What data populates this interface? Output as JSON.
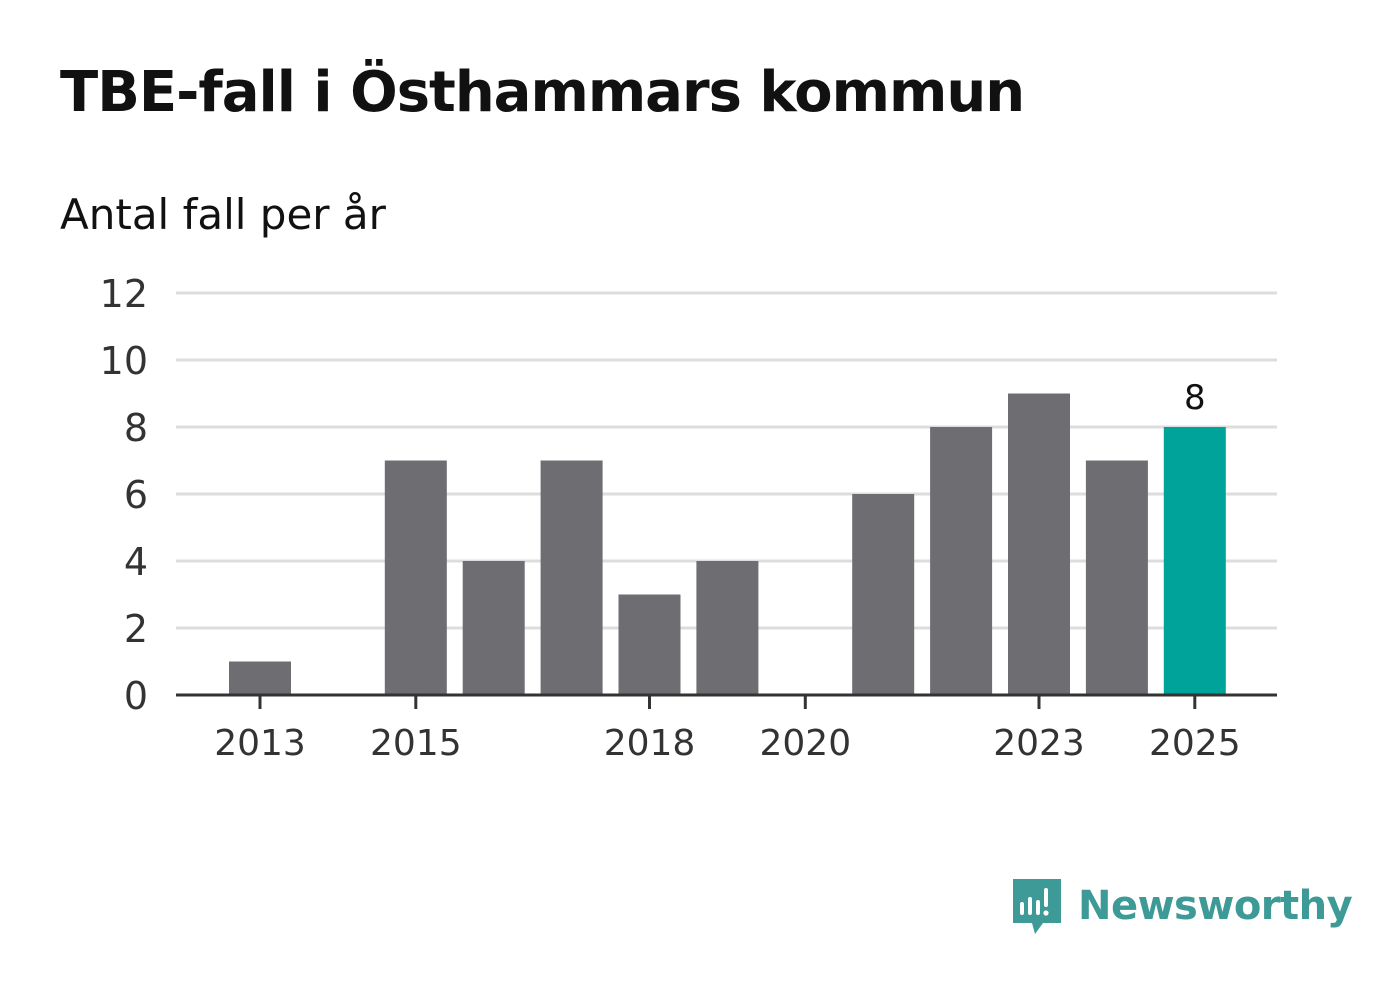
{
  "header": {
    "title": "TBE-fall i Östhammars kommun",
    "subtitle": "Antal fall per år"
  },
  "brand": {
    "name": "Newsworthy",
    "icon": "newsworthy-logo-icon",
    "color": "#3e9a96"
  },
  "colors": {
    "bar": "#6e6d72",
    "highlight": "#00a39a",
    "grid": "#dddddd",
    "axis": "#333333",
    "text": "#333333"
  },
  "chart_data": {
    "type": "bar",
    "categories": [
      "2013",
      "2014",
      "2015",
      "2016",
      "2017",
      "2018",
      "2019",
      "2020",
      "2021",
      "2022",
      "2023",
      "2024",
      "2025"
    ],
    "values": [
      1,
      0,
      7,
      4,
      7,
      3,
      4,
      0,
      6,
      8,
      9,
      7,
      8
    ],
    "highlight_index": 12,
    "data_labels": [
      {
        "index": 12,
        "text": "8"
      }
    ],
    "x_tick_labels": [
      "2013",
      "2015",
      "2018",
      "2020",
      "2023",
      "2025"
    ],
    "y_ticks": [
      0,
      2,
      4,
      6,
      8,
      10,
      12
    ],
    "ylim": [
      0,
      12
    ],
    "grid": true,
    "legend": "none",
    "title": "TBE-fall i Östhammars kommun",
    "ylabel": "Antal fall per år",
    "xlabel": ""
  }
}
